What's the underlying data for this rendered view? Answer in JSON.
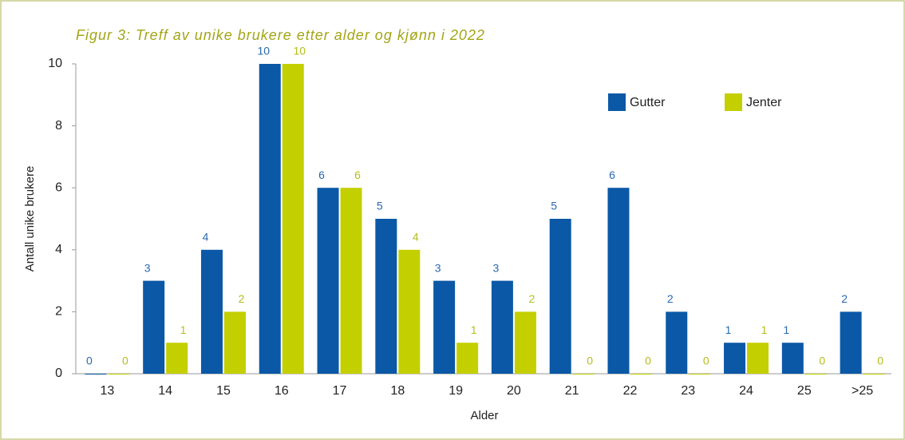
{
  "chart_data": {
    "type": "bar",
    "title": "Figur 3: Treff av unike brukere etter alder og kjønn i 2022",
    "y_label": "Antall unike brukere",
    "x_label": "Alder",
    "categories": [
      "13",
      "14",
      "15",
      "16",
      "17",
      "18",
      "19",
      "20",
      "21",
      "22",
      "23",
      "24",
      "25",
      ">25"
    ],
    "series": [
      {
        "name": "Gutter",
        "color": "#0b58a6",
        "values": [
          0,
          3,
          4,
          10,
          6,
          5,
          3,
          3,
          5,
          6,
          2,
          1,
          1,
          2
        ]
      },
      {
        "name": "Jenter",
        "color": "#c4cf00",
        "values": [
          0,
          1,
          2,
          10,
          6,
          4,
          1,
          2,
          0,
          0,
          0,
          1,
          0,
          0
        ]
      }
    ],
    "value_label_colors": [
      "#2a68ad",
      "#b5bd1a"
    ],
    "ylim": [
      0,
      10
    ],
    "yticks": [
      0,
      2,
      4,
      6,
      8,
      10
    ],
    "grid": false
  }
}
